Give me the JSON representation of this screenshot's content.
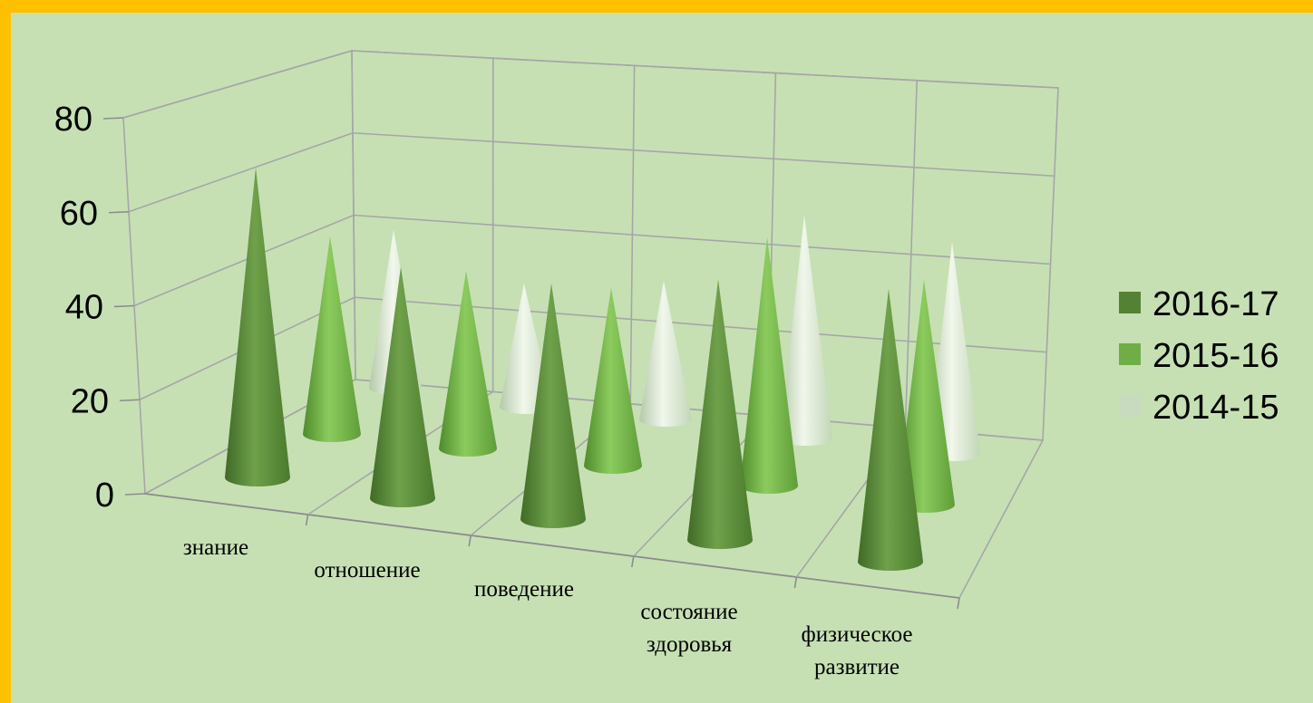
{
  "chart_data": {
    "type": "bar",
    "subtype": "3d-cone",
    "categories": [
      [
        "знание"
      ],
      [
        "отношение"
      ],
      [
        "поведение"
      ],
      [
        "состояние",
        "здоровья"
      ],
      [
        "физическое",
        "развитие"
      ]
    ],
    "series": [
      {
        "name": "2016-17",
        "color": "#548235",
        "values": [
          75,
          56,
          57,
          63,
          66
        ]
      },
      {
        "name": "2015-16",
        "color": "#70ad47",
        "values": [
          50,
          45,
          45,
          63,
          57
        ]
      },
      {
        "name": "2014-15",
        "color": "#e2efda",
        "values": [
          41,
          32,
          36,
          58,
          55
        ]
      }
    ],
    "yticks": [
      0,
      20,
      40,
      60,
      80
    ],
    "ylim": [
      0,
      80
    ],
    "grid": true,
    "legend": "right"
  }
}
